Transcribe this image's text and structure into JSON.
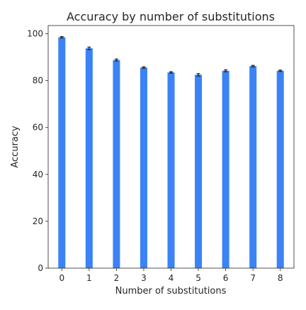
{
  "chart_data": {
    "type": "bar",
    "title": "Accuracy by number of substitutions",
    "xlabel": "Number of substitutions",
    "ylabel": "Accuracy",
    "categories": [
      "0",
      "1",
      "2",
      "3",
      "4",
      "5",
      "6",
      "7",
      "8"
    ],
    "values": [
      98.5,
      93.8,
      88.8,
      85.6,
      83.5,
      82.5,
      84.2,
      86.2,
      84.2
    ],
    "errors": [
      0.3,
      0.5,
      0.4,
      0.3,
      0.3,
      0.5,
      0.4,
      0.3,
      0.3
    ],
    "ylim": [
      0,
      103.5
    ],
    "yticks": [
      0,
      20,
      40,
      60,
      80,
      100
    ],
    "grid": false,
    "bar_color": "#3b82f6",
    "error_color": "#1a1a1a"
  }
}
